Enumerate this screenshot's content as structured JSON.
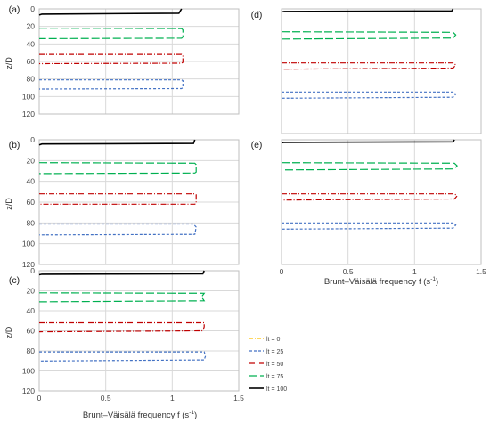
{
  "figure": {
    "xlabel_main": "Brunt–Väisälä frequency f (s",
    "xlabel_sup": "-1",
    "xlabel_close": ")",
    "ylabel": "z/D",
    "x_ticks": [
      "0",
      "0.5",
      "1",
      "1.5"
    ],
    "y_ticks": [
      "0",
      "20",
      "40",
      "60",
      "80",
      "100",
      "120"
    ]
  },
  "legend": [
    {
      "label": "lt = 0",
      "color": "#ffc000",
      "dash": "4,2,1,2"
    },
    {
      "label": "lt = 25",
      "color": "#4472c4",
      "dash": "3,2"
    },
    {
      "label": "lt = 50",
      "color": "#c00000",
      "dash": "6,2,1,2"
    },
    {
      "label": "lt = 75",
      "color": "#00b050",
      "dash": "9,3"
    },
    {
      "label": "lt = 100",
      "color": "#000000",
      "dash": ""
    }
  ],
  "chart_data": [
    {
      "panel": "(a)",
      "type": "line",
      "xlim": [
        0,
        1.5
      ],
      "ylim": [
        0,
        120
      ],
      "y_inverted": true,
      "grid": true,
      "xlabel": "",
      "ylabel": "z/D",
      "series": [
        {
          "name": "lt = 100",
          "x": [
            0,
            0.02,
            1.05,
            1.07
          ],
          "y": [
            7,
            6,
            5,
            0
          ]
        },
        {
          "name": "lt = 75",
          "x": [
            0,
            1.07,
            1.08,
            1.08,
            1.07,
            0
          ],
          "y": [
            22,
            22.5,
            24,
            32,
            33.5,
            34
          ]
        },
        {
          "name": "lt = 50",
          "x": [
            0,
            1.07,
            1.08,
            1.08,
            1.07,
            0
          ],
          "y": [
            52,
            52,
            53,
            61,
            62,
            62.5
          ]
        },
        {
          "name": "lt = 25",
          "x": [
            0,
            1.07,
            1.08,
            1.08,
            1.07,
            0
          ],
          "y": [
            81,
            81,
            82,
            90,
            91,
            91.5
          ]
        }
      ]
    },
    {
      "panel": "(d)",
      "type": "line",
      "xlim": [
        0,
        1.5
      ],
      "ylim": [
        0,
        120
      ],
      "y_inverted": true,
      "grid": true,
      "xlabel": "",
      "ylabel": "",
      "series": [
        {
          "name": "lt = 100",
          "x": [
            0,
            0.02,
            1.28,
            1.29
          ],
          "y": [
            3,
            2.5,
            2,
            0
          ]
        },
        {
          "name": "lt = 75",
          "x": [
            0,
            1.29,
            1.31,
            1.29,
            0
          ],
          "y": [
            22,
            22.5,
            25,
            28,
            29
          ]
        },
        {
          "name": "lt = 50",
          "x": [
            0,
            1.29,
            1.31,
            1.29,
            0
          ],
          "y": [
            52,
            52,
            54,
            57,
            58
          ]
        },
        {
          "name": "lt = 25",
          "x": [
            0,
            1.29,
            1.31,
            1.29,
            0
          ],
          "y": [
            80,
            80,
            82,
            85,
            86
          ]
        }
      ]
    },
    {
      "panel": "(b)",
      "type": "line",
      "xlim": [
        0,
        1.5
      ],
      "ylim": [
        0,
        120
      ],
      "y_inverted": true,
      "grid": true,
      "xlabel": "",
      "ylabel": "z/D",
      "series": [
        {
          "name": "lt = 100",
          "x": [
            0,
            0.02,
            1.16,
            1.17
          ],
          "y": [
            5,
            4,
            3.5,
            0
          ]
        },
        {
          "name": "lt = 75",
          "x": [
            0,
            1.17,
            1.18,
            1.18,
            1.17,
            0
          ],
          "y": [
            22,
            22.5,
            24,
            31,
            32,
            32.5
          ]
        },
        {
          "name": "lt = 50",
          "x": [
            0,
            1.17,
            1.18,
            1.18,
            1.17,
            0
          ],
          "y": [
            52,
            52,
            53,
            61,
            62,
            62
          ]
        },
        {
          "name": "lt = 25",
          "x": [
            0,
            1.16,
            1.18,
            1.17,
            0
          ],
          "y": [
            81,
            81,
            84,
            91,
            91.5
          ]
        }
      ]
    },
    {
      "panel": "(e)",
      "type": "line",
      "xlim": [
        0,
        1.5
      ],
      "ylim": [
        0,
        120
      ],
      "y_inverted": true,
      "grid": true,
      "xlabel": "",
      "ylabel": "",
      "series": [
        {
          "name": "lt = 100",
          "x": [
            0,
            0.02,
            1.29,
            1.3
          ],
          "y": [
            3,
            2.5,
            2,
            0
          ]
        },
        {
          "name": "lt = 75",
          "x": [
            0,
            1.3,
            1.32,
            1.3,
            0
          ],
          "y": [
            22,
            22.5,
            25,
            28,
            29
          ]
        },
        {
          "name": "lt = 50",
          "x": [
            0,
            1.3,
            1.32,
            1.3,
            0
          ],
          "y": [
            52,
            52,
            54,
            57,
            58
          ]
        },
        {
          "name": "lt = 25",
          "x": [
            0,
            1.29,
            1.31,
            1.29,
            0
          ],
          "y": [
            80,
            80,
            82,
            85,
            86
          ]
        }
      ]
    },
    {
      "panel": "(c)",
      "type": "line",
      "xlim": [
        0,
        1.5
      ],
      "ylim": [
        0,
        120
      ],
      "y_inverted": true,
      "grid": true,
      "xlabel": "Brunt–Väisälä frequency f (s-1)",
      "ylabel": "z/D",
      "series": [
        {
          "name": "lt = 100",
          "x": [
            0,
            0.02,
            1.23,
            1.24
          ],
          "y": [
            4,
            3.5,
            3,
            0
          ]
        },
        {
          "name": "lt = 75",
          "x": [
            0,
            1.24,
            1.22,
            1.24,
            0
          ],
          "y": [
            22,
            22.5,
            26,
            30,
            31
          ]
        },
        {
          "name": "lt = 50",
          "x": [
            0,
            1.24,
            1.24,
            1.23,
            0
          ],
          "y": [
            52,
            52,
            56,
            60,
            61
          ]
        },
        {
          "name": "lt = 25",
          "x": [
            0,
            1.24,
            1.25,
            1.24,
            0
          ],
          "y": [
            81,
            81,
            85,
            89,
            90
          ]
        }
      ]
    }
  ]
}
